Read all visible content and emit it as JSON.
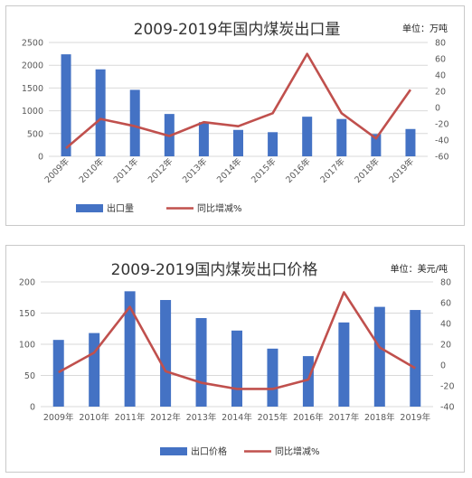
{
  "chart_data": [
    {
      "type": "bar",
      "title": "2009-2019年国内煤炭出口量",
      "unit_label": "单位：万吨",
      "categories": [
        "2009年",
        "2010年",
        "2011年",
        "2012年",
        "2013年",
        "2014年",
        "2015年",
        "2016年",
        "2017年",
        "2018年",
        "2019年"
      ],
      "series": [
        {
          "name": "出口量",
          "type": "bar",
          "axis": "left",
          "color": "#4472c4",
          "values": [
            2240,
            1910,
            1460,
            930,
            750,
            580,
            530,
            870,
            820,
            490,
            600
          ]
        },
        {
          "name": "同比增减%",
          "type": "line",
          "axis": "right",
          "color": "#c0504d",
          "values": [
            -50,
            -14,
            -23,
            -35,
            -18,
            -23,
            -7,
            66,
            -7,
            -38,
            22
          ]
        }
      ],
      "ylim": [
        0,
        2500
      ],
      "yticks": [
        "0",
        "500",
        "1000",
        "1500",
        "2000",
        "2500"
      ],
      "y2lim": [
        -60,
        80
      ],
      "y2ticks": [
        "-60",
        "-40",
        "-20",
        "0",
        "20",
        "40",
        "60",
        "80"
      ],
      "legend_position": "bottom-left",
      "xtick_rotation": "rotated"
    },
    {
      "type": "bar",
      "title": "2009-2019国内煤炭出口价格",
      "unit_label": "单位：美元/吨",
      "categories": [
        "2009年",
        "2010年",
        "2011年",
        "2012年",
        "2013年",
        "2014年",
        "2015年",
        "2016年",
        "2017年",
        "2018年",
        "2019年"
      ],
      "series": [
        {
          "name": "出口价格",
          "type": "bar",
          "axis": "left",
          "color": "#4472c4",
          "values": [
            107,
            118,
            185,
            171,
            142,
            122,
            93,
            81,
            135,
            160,
            155
          ]
        },
        {
          "name": "同比增减%",
          "type": "line",
          "axis": "right",
          "color": "#c0504d",
          "values": [
            -7,
            12,
            56,
            -6,
            -17,
            -23,
            -23,
            -14,
            70,
            17,
            -3
          ]
        }
      ],
      "ylim": [
        0,
        200
      ],
      "yticks": [
        "0",
        "50",
        "100",
        "150",
        "200"
      ],
      "y2lim": [
        -40,
        80
      ],
      "y2ticks": [
        "-40",
        "-20",
        "0",
        "20",
        "40",
        "60",
        "80"
      ],
      "legend_position": "bottom-center",
      "xtick_rotation": "horizontal"
    }
  ]
}
